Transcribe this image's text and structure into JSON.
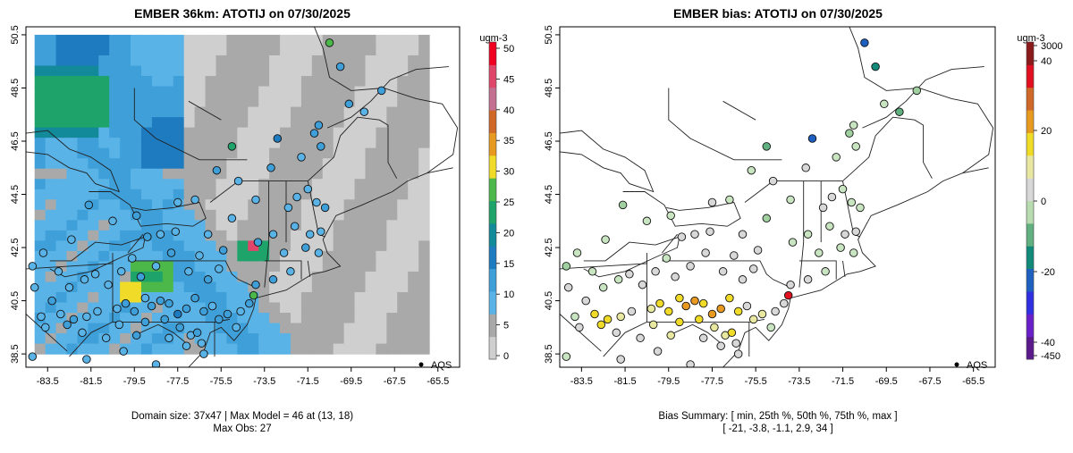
{
  "left_panel": {
    "title": "EMBER 36km: ATOTIJ on 07/30/2025",
    "caption_line1": "Domain size: 37x47 | Max Model = 46 at (13, 18)",
    "caption_line2": "Max Obs: 27",
    "legend_label": "AQS",
    "colorbar_unit": "ugm-3",
    "colorbar_ticks": [
      "0",
      "5",
      "10",
      "15",
      "20",
      "25",
      "30",
      "35",
      "40",
      "45",
      "50"
    ],
    "colorbar_range": [
      0,
      50
    ],
    "colorbar_colors": [
      "#cfcfcf",
      "#a9a9a9",
      "#5ab3e6",
      "#3f9fd9",
      "#1f7bbf",
      "#128a9a",
      "#1ea46b",
      "#4cb84a",
      "#f0dc28",
      "#e89a20",
      "#d06828",
      "#c47090",
      "#e0456a",
      "#f00020"
    ]
  },
  "right_panel": {
    "title": "EMBER bias: ATOTIJ on 07/30/2025",
    "caption_line1": "Bias Summary: [ min, 25th %, 50th %, 75th %, max ]",
    "caption_line2": "[ -21,   -3.8,   -1.1,   2.9,   34 ]",
    "legend_label": "AQS",
    "colorbar_unit": "ugm-3",
    "colorbar_ticks": [
      "3000",
      "40",
      "20",
      "0",
      "-20",
      "-40",
      "-450"
    ],
    "colorbar_colors": [
      "#8b1a1a",
      "#e01020",
      "#d06828",
      "#e89a20",
      "#f0dc28",
      "#e8e8a0",
      "#d8d8d8",
      "#b8dcb0",
      "#60b080",
      "#128a7a",
      "#1f5fc0",
      "#3030e0",
      "#6a20c8",
      "#5a1a8c"
    ]
  },
  "axes": {
    "y_ticks": [
      "38.5",
      "40.5",
      "42.5",
      "44.5",
      "46.5",
      "48.5",
      "50.5"
    ],
    "x_ticks": [
      "-83.5",
      "-81.5",
      "-79.5",
      "-77.5",
      "-75.5",
      "-73.5",
      "-71.5",
      "-69.5",
      "-67.5",
      "-65.5"
    ],
    "lon_range": [
      -84.5,
      -64.5
    ],
    "lat_range": [
      38.0,
      50.8
    ]
  },
  "stations": [
    {
      "lon": -70.5,
      "lat": 50.2,
      "obs": 27,
      "bias": -21
    },
    {
      "lon": -70.0,
      "lat": 49.3,
      "obs": 14,
      "bias": -15
    },
    {
      "lon": -68.1,
      "lat": 48.4,
      "obs": 11,
      "bias": -5
    },
    {
      "lon": -69.6,
      "lat": 47.9,
      "obs": 12,
      "bias": -3
    },
    {
      "lon": -68.9,
      "lat": 47.6,
      "obs": 10,
      "bias": -8
    },
    {
      "lon": -72.9,
      "lat": 46.6,
      "obs": 15,
      "bias": -20
    },
    {
      "lon": -75.0,
      "lat": 46.3,
      "obs": 22,
      "bias": -10
    },
    {
      "lon": -71.2,
      "lat": 46.8,
      "obs": 11,
      "bias": -4
    },
    {
      "lon": -71.0,
      "lat": 47.1,
      "obs": 12,
      "bias": -3
    },
    {
      "lon": -70.9,
      "lat": 46.3,
      "obs": 12,
      "bias": -2
    },
    {
      "lon": -71.8,
      "lat": 45.9,
      "obs": 10,
      "bias": -2
    },
    {
      "lon": -73.2,
      "lat": 45.5,
      "obs": 11,
      "bias": -1
    },
    {
      "lon": -72.0,
      "lat": 44.4,
      "obs": 9,
      "bias": -1
    },
    {
      "lon": -71.5,
      "lat": 44.7,
      "obs": 10,
      "bias": -2
    },
    {
      "lon": -71.1,
      "lat": 44.2,
      "obs": 10,
      "bias": -3
    },
    {
      "lon": -70.7,
      "lat": 44.0,
      "obs": 11,
      "bias": -2
    },
    {
      "lon": -72.4,
      "lat": 44.0,
      "obs": 9,
      "bias": -1
    },
    {
      "lon": -72.1,
      "lat": 43.3,
      "obs": 10,
      "bias": -2
    },
    {
      "lon": -71.4,
      "lat": 43.0,
      "obs": 9,
      "bias": -1
    },
    {
      "lon": -70.9,
      "lat": 43.1,
      "obs": 10,
      "bias": -1
    },
    {
      "lon": -71.6,
      "lat": 42.5,
      "obs": 11,
      "bias": -3
    },
    {
      "lon": -71.0,
      "lat": 42.3,
      "obs": 9,
      "bias": -2
    },
    {
      "lon": -72.6,
      "lat": 42.3,
      "obs": 10,
      "bias": -2
    },
    {
      "lon": -73.1,
      "lat": 43.0,
      "obs": 10,
      "bias": -3
    },
    {
      "lon": -73.8,
      "lat": 42.7,
      "obs": 11,
      "bias": -3
    },
    {
      "lon": -75.0,
      "lat": 43.6,
      "obs": 10,
      "bias": -4
    },
    {
      "lon": -73.9,
      "lat": 44.3,
      "obs": 9,
      "bias": -3
    },
    {
      "lon": -72.3,
      "lat": 41.6,
      "obs": 10,
      "bias": -2
    },
    {
      "lon": -73.1,
      "lat": 41.3,
      "obs": 11,
      "bias": -1
    },
    {
      "lon": -73.9,
      "lat": 41.1,
      "obs": 12,
      "bias": 2
    },
    {
      "lon": -74.0,
      "lat": 40.7,
      "obs": 27,
      "bias": 34
    },
    {
      "lon": -74.2,
      "lat": 40.4,
      "obs": 12,
      "bias": 3
    },
    {
      "lon": -74.6,
      "lat": 40.1,
      "obs": 10,
      "bias": -1
    },
    {
      "lon": -74.8,
      "lat": 39.5,
      "obs": 9,
      "bias": -2
    },
    {
      "lon": -75.2,
      "lat": 40.0,
      "obs": 13,
      "bias": 8
    },
    {
      "lon": -75.6,
      "lat": 39.8,
      "obs": 12,
      "bias": 5
    },
    {
      "lon": -75.9,
      "lat": 40.3,
      "obs": 10,
      "bias": 2
    },
    {
      "lon": -76.3,
      "lat": 40.1,
      "obs": 12,
      "bias": 10
    },
    {
      "lon": -76.7,
      "lat": 40.6,
      "obs": 12,
      "bias": 12
    },
    {
      "lon": -77.1,
      "lat": 40.2,
      "obs": 14,
      "bias": 15
    },
    {
      "lon": -77.5,
      "lat": 40.0,
      "obs": 15,
      "bias": 18
    },
    {
      "lon": -77.9,
      "lat": 40.4,
      "obs": 13,
      "bias": 14
    },
    {
      "lon": -78.3,
      "lat": 40.5,
      "obs": 11,
      "bias": 16
    },
    {
      "lon": -78.7,
      "lat": 40.3,
      "obs": 12,
      "bias": 15
    },
    {
      "lon": -79.0,
      "lat": 40.6,
      "obs": 10,
      "bias": 13
    },
    {
      "lon": -79.5,
      "lat": 40.1,
      "obs": 11,
      "bias": 14
    },
    {
      "lon": -79.9,
      "lat": 40.4,
      "obs": 12,
      "bias": 12
    },
    {
      "lon": -80.3,
      "lat": 40.2,
      "obs": 10,
      "bias": 9
    },
    {
      "lon": -77.4,
      "lat": 39.5,
      "obs": 11,
      "bias": 5
    },
    {
      "lon": -76.9,
      "lat": 39.2,
      "obs": 10,
      "bias": 7
    },
    {
      "lon": -76.6,
      "lat": 39.3,
      "obs": 12,
      "bias": 11
    },
    {
      "lon": -76.4,
      "lat": 38.9,
      "obs": 10,
      "bias": 4
    },
    {
      "lon": -77.1,
      "lat": 38.8,
      "obs": 10,
      "bias": 2
    },
    {
      "lon": -77.9,
      "lat": 39.1,
      "obs": 9,
      "bias": 3
    },
    {
      "lon": -79.4,
      "lat": 39.2,
      "obs": 11,
      "bias": 6
    },
    {
      "lon": -80.2,
      "lat": 39.6,
      "obs": 10,
      "bias": 8
    },
    {
      "lon": -82.9,
      "lat": 40.0,
      "obs": 10,
      "bias": 12
    },
    {
      "lon": -82.3,
      "lat": 39.8,
      "obs": 11,
      "bias": 14
    },
    {
      "lon": -82.6,
      "lat": 39.6,
      "obs": 11,
      "bias": 11
    },
    {
      "lon": -81.7,
      "lat": 39.9,
      "obs": 10,
      "bias": 9
    },
    {
      "lon": -81.2,
      "lat": 40.1,
      "obs": 10,
      "bias": 2
    },
    {
      "lon": -81.9,
      "lat": 39.3,
      "obs": 9,
      "bias": -1
    },
    {
      "lon": -83.8,
      "lat": 39.9,
      "obs": 10,
      "bias": -2
    },
    {
      "lon": -83.6,
      "lat": 39.5,
      "obs": 9,
      "bias": -1
    },
    {
      "lon": -83.3,
      "lat": 40.5,
      "obs": 11,
      "bias": 0
    },
    {
      "lon": -82.5,
      "lat": 41.0,
      "obs": 10,
      "bias": -2
    },
    {
      "lon": -81.8,
      "lat": 41.3,
      "obs": 10,
      "bias": -3
    },
    {
      "lon": -81.3,
      "lat": 41.5,
      "obs": 9,
      "bias": -1
    },
    {
      "lon": -80.7,
      "lat": 41.1,
      "obs": 10,
      "bias": 0
    },
    {
      "lon": -80.1,
      "lat": 41.6,
      "obs": 10,
      "bias": -1
    },
    {
      "lon": -79.6,
      "lat": 42.1,
      "obs": 9,
      "bias": -2
    },
    {
      "lon": -78.9,
      "lat": 42.9,
      "obs": 11,
      "bias": -1
    },
    {
      "lon": -78.3,
      "lat": 43.0,
      "obs": 10,
      "bias": 0
    },
    {
      "lon": -77.6,
      "lat": 43.1,
      "obs": 10,
      "bias": -1
    },
    {
      "lon": -76.1,
      "lat": 43.0,
      "obs": 10,
      "bias": -1
    },
    {
      "lon": -75.4,
      "lat": 42.4,
      "obs": 11,
      "bias": 2
    },
    {
      "lon": -76.5,
      "lat": 42.2,
      "obs": 10,
      "bias": 1
    },
    {
      "lon": -77.8,
      "lat": 42.3,
      "obs": 12,
      "bias": 3
    },
    {
      "lon": -78.5,
      "lat": 41.8,
      "obs": 10,
      "bias": -1
    },
    {
      "lon": -79.2,
      "lat": 41.4,
      "obs": 11,
      "bias": 0
    },
    {
      "lon": -83.7,
      "lat": 42.3,
      "obs": 10,
      "bias": -2
    },
    {
      "lon": -84.2,
      "lat": 41.8,
      "obs": 9,
      "bias": -4
    },
    {
      "lon": -84.1,
      "lat": 41.0,
      "obs": 10,
      "bias": -1
    },
    {
      "lon": -83.0,
      "lat": 41.6,
      "obs": 10,
      "bias": -3
    },
    {
      "lon": -82.4,
      "lat": 42.8,
      "obs": 10,
      "bias": -2
    },
    {
      "lon": -81.6,
      "lat": 44.1,
      "obs": 11,
      "bias": -5
    },
    {
      "lon": -80.5,
      "lat": 43.5,
      "obs": 10,
      "bias": -2
    },
    {
      "lon": -79.4,
      "lat": 43.7,
      "obs": 12,
      "bias": -3
    },
    {
      "lon": -77.5,
      "lat": 44.2,
      "obs": 10,
      "bias": -1
    },
    {
      "lon": -76.7,
      "lat": 44.3,
      "obs": 9,
      "bias": -2
    },
    {
      "lon": -75.7,
      "lat": 45.4,
      "obs": 11,
      "bias": -2
    },
    {
      "lon": -74.7,
      "lat": 45.0,
      "obs": 10,
      "bias": -1
    },
    {
      "lon": -84.2,
      "lat": 38.4,
      "obs": 9,
      "bias": -3
    },
    {
      "lon": -81.7,
      "lat": 38.3,
      "obs": 10,
      "bias": -1
    },
    {
      "lon": -80.0,
      "lat": 38.6,
      "obs": 10,
      "bias": 2
    },
    {
      "lon": -78.5,
      "lat": 38.1,
      "obs": 9,
      "bias": 1
    },
    {
      "lon": -76.3,
      "lat": 38.5,
      "obs": 10,
      "bias": 3
    },
    {
      "lon": -77.0,
      "lat": 41.6,
      "obs": 10,
      "bias": -1
    },
    {
      "lon": -76.1,
      "lat": 41.3,
      "obs": 11,
      "bias": 1
    },
    {
      "lon": -75.6,
      "lat": 41.7,
      "obs": 10,
      "bias": 0
    },
    {
      "lon": -80.8,
      "lat": 39.1,
      "obs": 10,
      "bias": 4
    },
    {
      "lon": -79.0,
      "lat": 39.7,
      "obs": 12,
      "bias": 11
    },
    {
      "lon": -78.1,
      "lat": 39.8,
      "obs": 11,
      "bias": 10
    }
  ]
}
